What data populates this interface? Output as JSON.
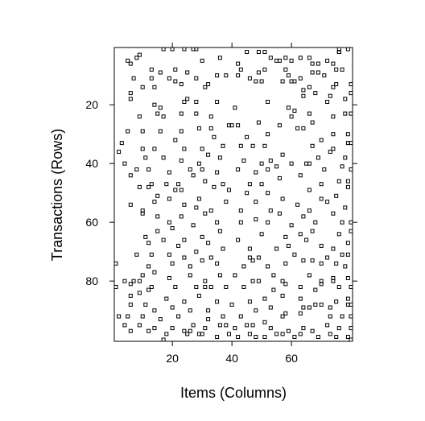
{
  "chart_data": {
    "type": "scatter",
    "title": "",
    "xlabel": "Items (Columns)",
    "ylabel": "Transactions (Rows)",
    "xlim": [
      0.5,
      80.5
    ],
    "ylim": [
      100.5,
      0.5
    ],
    "x_ticks": [
      20,
      40,
      60
    ],
    "y_ticks": [
      20,
      40,
      60,
      80
    ],
    "x_tick_labels": [
      "20",
      "40",
      "60"
    ],
    "y_tick_labels": [
      "20",
      "40",
      "60",
      "80"
    ],
    "grid": false,
    "legend": "none",
    "marker": "open-square",
    "marker_color": "#000000",
    "points": [
      [
        8,
        4
      ],
      [
        9,
        3
      ],
      [
        17,
        1
      ],
      [
        20,
        1
      ],
      [
        24,
        1
      ],
      [
        27,
        1
      ],
      [
        28,
        1
      ],
      [
        45,
        2
      ],
      [
        49,
        2
      ],
      [
        51,
        2
      ],
      [
        76,
        1
      ],
      [
        79,
        1
      ],
      [
        5,
        5
      ],
      [
        6,
        6
      ],
      [
        30,
        5
      ],
      [
        36,
        4
      ],
      [
        42,
        6
      ],
      [
        53,
        4
      ],
      [
        55,
        5
      ],
      [
        56,
        5
      ],
      [
        58,
        4
      ],
      [
        60,
        5
      ],
      [
        63,
        4
      ],
      [
        66,
        4
      ],
      [
        69,
        6
      ],
      [
        72,
        5
      ],
      [
        76,
        2
      ],
      [
        13,
        8
      ],
      [
        21,
        8
      ],
      [
        43,
        8
      ],
      [
        49,
        9
      ],
      [
        51,
        8
      ],
      [
        58,
        8
      ],
      [
        59,
        10
      ],
      [
        67,
        6
      ],
      [
        69,
        9
      ],
      [
        74,
        6
      ],
      [
        76,
        2
      ],
      [
        7,
        11
      ],
      [
        13,
        11
      ],
      [
        16,
        9
      ],
      [
        19,
        11
      ],
      [
        25,
        9
      ],
      [
        28,
        11
      ],
      [
        32,
        13
      ],
      [
        35,
        10
      ],
      [
        38,
        10
      ],
      [
        42,
        10
      ],
      [
        46,
        11
      ],
      [
        50,
        12
      ],
      [
        57,
        12
      ],
      [
        61,
        12
      ],
      [
        63,
        11
      ],
      [
        67,
        9
      ],
      [
        71,
        10
      ],
      [
        75,
        8
      ],
      [
        77,
        8
      ],
      [
        81,
        13
      ],
      [
        6,
        16
      ],
      [
        10,
        14
      ],
      [
        14,
        14
      ],
      [
        21,
        12
      ],
      [
        23,
        13
      ],
      [
        31,
        14
      ],
      [
        48,
        12
      ],
      [
        60,
        12
      ],
      [
        64,
        15
      ],
      [
        66,
        14
      ],
      [
        74,
        14
      ],
      [
        75,
        13
      ],
      [
        80,
        16
      ],
      [
        6,
        18
      ],
      [
        14,
        20
      ],
      [
        16,
        21
      ],
      [
        24,
        19
      ],
      [
        25,
        18
      ],
      [
        28,
        19
      ],
      [
        35,
        19
      ],
      [
        41,
        21
      ],
      [
        52,
        19
      ],
      [
        59,
        21
      ],
      [
        64,
        17
      ],
      [
        68,
        16
      ],
      [
        72,
        19
      ],
      [
        73,
        17
      ],
      [
        78,
        18
      ],
      [
        9,
        24
      ],
      [
        15,
        23
      ],
      [
        17,
        24
      ],
      [
        23,
        23
      ],
      [
        28,
        23
      ],
      [
        33,
        24
      ],
      [
        49,
        26
      ],
      [
        56,
        27
      ],
      [
        60,
        24
      ],
      [
        61,
        22
      ],
      [
        66,
        23
      ],
      [
        74,
        24
      ],
      [
        78,
        23
      ],
      [
        80,
        23
      ],
      [
        5,
        29
      ],
      [
        10,
        29
      ],
      [
        16,
        29
      ],
      [
        23,
        29
      ],
      [
        29,
        28
      ],
      [
        33,
        28
      ],
      [
        39,
        27
      ],
      [
        40,
        27
      ],
      [
        42,
        27
      ],
      [
        45,
        31
      ],
      [
        52,
        30
      ],
      [
        62,
        28
      ],
      [
        64,
        28
      ],
      [
        67,
        26
      ],
      [
        74,
        30
      ],
      [
        79,
        30
      ],
      [
        3,
        33
      ],
      [
        10,
        35
      ],
      [
        14,
        35
      ],
      [
        21,
        32
      ],
      [
        24,
        35
      ],
      [
        30,
        35
      ],
      [
        34,
        31
      ],
      [
        37,
        34
      ],
      [
        43,
        34
      ],
      [
        47,
        34
      ],
      [
        51,
        34
      ],
      [
        67,
        34
      ],
      [
        70,
        32
      ],
      [
        74,
        35
      ],
      [
        79,
        33
      ],
      [
        80,
        33
      ],
      [
        2,
        36
      ],
      [
        11,
        38
      ],
      [
        17,
        38
      ],
      [
        23,
        39
      ],
      [
        29,
        40
      ],
      [
        32,
        37
      ],
      [
        36,
        38
      ],
      [
        44,
        39
      ],
      [
        50,
        40
      ],
      [
        53,
        39
      ],
      [
        57,
        37
      ],
      [
        66,
        40
      ],
      [
        69,
        38
      ],
      [
        73,
        36
      ],
      [
        78,
        38
      ],
      [
        4,
        40
      ],
      [
        8,
        42
      ],
      [
        12,
        42
      ],
      [
        19,
        43
      ],
      [
        26,
        42
      ],
      [
        30,
        42
      ],
      [
        35,
        43
      ],
      [
        42,
        42
      ],
      [
        48,
        43
      ],
      [
        52,
        42
      ],
      [
        55,
        41
      ],
      [
        60,
        40
      ],
      [
        65,
        40
      ],
      [
        71,
        42
      ],
      [
        77,
        41
      ],
      [
        80,
        42
      ],
      [
        6,
        44
      ],
      [
        13,
        47
      ],
      [
        18,
        47
      ],
      [
        22,
        47
      ],
      [
        27,
        44
      ],
      [
        31,
        46
      ],
      [
        37,
        47
      ],
      [
        46,
        47
      ],
      [
        50,
        47
      ],
      [
        56,
        45
      ],
      [
        63,
        44
      ],
      [
        70,
        47
      ],
      [
        76,
        46
      ],
      [
        79,
        46
      ],
      [
        9,
        48
      ],
      [
        12,
        48
      ],
      [
        15,
        51
      ],
      [
        21,
        49
      ],
      [
        23,
        49
      ],
      [
        29,
        52
      ],
      [
        34,
        48
      ],
      [
        39,
        49
      ],
      [
        45,
        50
      ],
      [
        52,
        50
      ],
      [
        57,
        52
      ],
      [
        66,
        49
      ],
      [
        70,
        52
      ],
      [
        75,
        51
      ],
      [
        79,
        48
      ],
      [
        6,
        54
      ],
      [
        10,
        56
      ],
      [
        14,
        53
      ],
      [
        19,
        52
      ],
      [
        24,
        54
      ],
      [
        28,
        55
      ],
      [
        33,
        56
      ],
      [
        38,
        53
      ],
      [
        43,
        56
      ],
      [
        48,
        53
      ],
      [
        53,
        56
      ],
      [
        62,
        54
      ],
      [
        66,
        56
      ],
      [
        72,
        53
      ],
      [
        78,
        55
      ],
      [
        10,
        57
      ],
      [
        15,
        58
      ],
      [
        19,
        60
      ],
      [
        23,
        58
      ],
      [
        27,
        61
      ],
      [
        31,
        57
      ],
      [
        35,
        60
      ],
      [
        43,
        60
      ],
      [
        48,
        59
      ],
      [
        52,
        60
      ],
      [
        56,
        57
      ],
      [
        60,
        61
      ],
      [
        64,
        58
      ],
      [
        68,
        60
      ],
      [
        74,
        57
      ],
      [
        77,
        60
      ],
      [
        80,
        60
      ],
      [
        11,
        65
      ],
      [
        15,
        63
      ],
      [
        20,
        62
      ],
      [
        24,
        66
      ],
      [
        30,
        65
      ],
      [
        36,
        63
      ],
      [
        42,
        66
      ],
      [
        50,
        64
      ],
      [
        58,
        65
      ],
      [
        63,
        64
      ],
      [
        67,
        63
      ],
      [
        76,
        64
      ],
      [
        81,
        63
      ],
      [
        12,
        67
      ],
      [
        17,
        66
      ],
      [
        22,
        68
      ],
      [
        28,
        70
      ],
      [
        32,
        67
      ],
      [
        37,
        69
      ],
      [
        46,
        69
      ],
      [
        55,
        69
      ],
      [
        59,
        68
      ],
      [
        65,
        66
      ],
      [
        70,
        68
      ],
      [
        74,
        69
      ],
      [
        79,
        67
      ],
      [
        8,
        71
      ],
      [
        13,
        71
      ],
      [
        19,
        71
      ],
      [
        24,
        72
      ],
      [
        33,
        72
      ],
      [
        46,
        72
      ],
      [
        49,
        72
      ],
      [
        61,
        71
      ],
      [
        67,
        73
      ],
      [
        72,
        72
      ],
      [
        77,
        71
      ],
      [
        79,
        71
      ],
      [
        1,
        74
      ],
      [
        12,
        75
      ],
      [
        20,
        74
      ],
      [
        26,
        75
      ],
      [
        30,
        73
      ],
      [
        35,
        74
      ],
      [
        44,
        75
      ],
      [
        47,
        73
      ],
      [
        52,
        75
      ],
      [
        58,
        74
      ],
      [
        64,
        73
      ],
      [
        70,
        74
      ],
      [
        75,
        74
      ],
      [
        78,
        75
      ],
      [
        10,
        78
      ],
      [
        14,
        77
      ],
      [
        19,
        79
      ],
      [
        26,
        78
      ],
      [
        31,
        80
      ],
      [
        36,
        78
      ],
      [
        41,
        78
      ],
      [
        47,
        80
      ],
      [
        54,
        78
      ],
      [
        57,
        80
      ],
      [
        66,
        78
      ],
      [
        70,
        80
      ],
      [
        74,
        79
      ],
      [
        79,
        79
      ],
      [
        4,
        80
      ],
      [
        6,
        81
      ],
      [
        7,
        80
      ],
      [
        9,
        80
      ],
      [
        13,
        82
      ],
      [
        21,
        82
      ],
      [
        28,
        82
      ],
      [
        31,
        82
      ],
      [
        33,
        82
      ],
      [
        38,
        82
      ],
      [
        44,
        82
      ],
      [
        49,
        80
      ],
      [
        54,
        83
      ],
      [
        58,
        81
      ],
      [
        63,
        82
      ],
      [
        68,
        83
      ],
      [
        70,
        81
      ],
      [
        74,
        80
      ],
      [
        76,
        82
      ],
      [
        80,
        82
      ],
      [
        1,
        82
      ],
      [
        6,
        85
      ],
      [
        9,
        84
      ],
      [
        12,
        83
      ],
      [
        18,
        86
      ],
      [
        24,
        87
      ],
      [
        29,
        85
      ],
      [
        35,
        87
      ],
      [
        40,
        88
      ],
      [
        46,
        87
      ],
      [
        51,
        86
      ],
      [
        57,
        85
      ],
      [
        63,
        86
      ],
      [
        70,
        88
      ],
      [
        75,
        87
      ],
      [
        79,
        86
      ],
      [
        6,
        88
      ],
      [
        11,
        88
      ],
      [
        14,
        90
      ],
      [
        20,
        89
      ],
      [
        26,
        90
      ],
      [
        32,
        90
      ],
      [
        37,
        92
      ],
      [
        43,
        92
      ],
      [
        48,
        90
      ],
      [
        53,
        89
      ],
      [
        58,
        91
      ],
      [
        64,
        89
      ],
      [
        68,
        88
      ],
      [
        73,
        89
      ],
      [
        79,
        88
      ],
      [
        81,
        88
      ],
      [
        2,
        92
      ],
      [
        5,
        92
      ],
      [
        10,
        92
      ],
      [
        16,
        93
      ],
      [
        22,
        92
      ],
      [
        27,
        95
      ],
      [
        32,
        93
      ],
      [
        38,
        95
      ],
      [
        45,
        95
      ],
      [
        51,
        94
      ],
      [
        57,
        92
      ],
      [
        63,
        91
      ],
      [
        66,
        89
      ],
      [
        73,
        92
      ],
      [
        77,
        92
      ],
      [
        80,
        92
      ],
      [
        4,
        95
      ],
      [
        9,
        95
      ],
      [
        14,
        96
      ],
      [
        20,
        96
      ],
      [
        26,
        97
      ],
      [
        31,
        96
      ],
      [
        36,
        95
      ],
      [
        41,
        96
      ],
      [
        47,
        95
      ],
      [
        53,
        96
      ],
      [
        59,
        97
      ],
      [
        64,
        96
      ],
      [
        72,
        95
      ],
      [
        76,
        96
      ],
      [
        80,
        96
      ],
      [
        6,
        97
      ],
      [
        12,
        97
      ],
      [
        18,
        98
      ],
      [
        24,
        97
      ],
      [
        29,
        98
      ],
      [
        39,
        98
      ],
      [
        46,
        98
      ],
      [
        51,
        99
      ],
      [
        57,
        98
      ],
      [
        61,
        99
      ],
      [
        67,
        97
      ],
      [
        73,
        98
      ],
      [
        79,
        99
      ],
      [
        80,
        100
      ],
      [
        17,
        100
      ],
      [
        25,
        98
      ],
      [
        30,
        98
      ],
      [
        35,
        99
      ],
      [
        42,
        99
      ],
      [
        48,
        99
      ],
      [
        55,
        98
      ],
      [
        63,
        98
      ],
      [
        69,
        99
      ],
      [
        75,
        99
      ]
    ]
  }
}
